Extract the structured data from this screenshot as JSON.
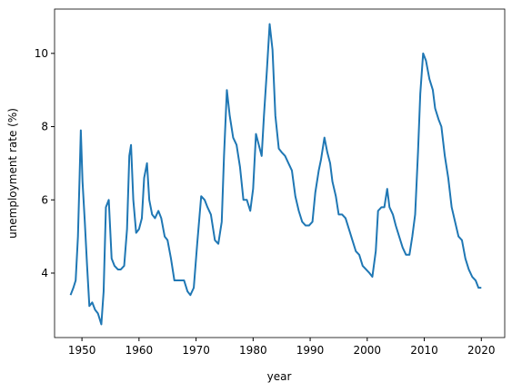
{
  "chart_data": {
    "type": "line",
    "xlabel": "year",
    "ylabel": "unemployment rate (%)",
    "x": [
      1948.0,
      1948.5,
      1948.9,
      1949.3,
      1949.6,
      1949.8,
      1950.1,
      1950.5,
      1950.9,
      1951.3,
      1951.8,
      1952.3,
      1952.8,
      1953.4,
      1953.8,
      1954.2,
      1954.7,
      1955.2,
      1955.7,
      1956.3,
      1956.8,
      1957.4,
      1957.9,
      1958.3,
      1958.6,
      1959.0,
      1959.5,
      1960.0,
      1960.5,
      1960.9,
      1961.4,
      1961.8,
      1962.3,
      1962.8,
      1963.4,
      1963.9,
      1964.5,
      1965.0,
      1965.6,
      1966.2,
      1966.8,
      1967.4,
      1967.9,
      1968.5,
      1969.0,
      1969.6,
      1970.2,
      1970.9,
      1971.5,
      1972.0,
      1972.6,
      1973.3,
      1973.9,
      1974.5,
      1974.9,
      1975.4,
      1975.9,
      1976.5,
      1977.1,
      1977.7,
      1978.3,
      1978.9,
      1979.5,
      1980.0,
      1980.5,
      1981.0,
      1981.5,
      1981.9,
      1982.4,
      1982.9,
      1983.4,
      1983.9,
      1984.5,
      1985.0,
      1985.6,
      1986.2,
      1986.8,
      1987.4,
      1988.0,
      1988.6,
      1989.2,
      1989.8,
      1990.4,
      1990.9,
      1991.5,
      1991.9,
      1992.5,
      1993.0,
      1993.5,
      1993.9,
      1994.5,
      1995.0,
      1995.6,
      1996.2,
      1996.8,
      1997.4,
      1998.0,
      1998.6,
      1999.2,
      1999.8,
      2000.4,
      2000.9,
      2001.5,
      2001.9,
      2002.5,
      2003.0,
      2003.5,
      2003.9,
      2004.5,
      2005.0,
      2005.6,
      2006.2,
      2006.8,
      2007.4,
      2007.9,
      2008.4,
      2008.9,
      2009.3,
      2009.8,
      2010.3,
      2010.9,
      2011.5,
      2011.9,
      2012.5,
      2013.0,
      2013.6,
      2014.2,
      2014.8,
      2015.4,
      2016.0,
      2016.6,
      2017.2,
      2017.8,
      2018.4,
      2019.0,
      2019.5,
      2020.0
    ],
    "series": [
      {
        "name": "unemployment rate",
        "color": "#1f77b4",
        "values": [
          3.4,
          3.6,
          3.8,
          5.0,
          6.7,
          7.9,
          6.5,
          5.4,
          4.2,
          3.1,
          3.2,
          3.0,
          2.9,
          2.6,
          3.5,
          5.8,
          6.0,
          4.4,
          4.2,
          4.1,
          4.1,
          4.2,
          5.2,
          7.2,
          7.5,
          6.0,
          5.1,
          5.2,
          5.5,
          6.6,
          7.0,
          6.0,
          5.6,
          5.5,
          5.7,
          5.5,
          5.0,
          4.9,
          4.4,
          3.8,
          3.8,
          3.8,
          3.8,
          3.5,
          3.4,
          3.6,
          4.8,
          6.1,
          6.0,
          5.8,
          5.6,
          4.9,
          4.8,
          5.4,
          7.2,
          9.0,
          8.3,
          7.7,
          7.5,
          6.9,
          6.0,
          6.0,
          5.7,
          6.3,
          7.8,
          7.5,
          7.2,
          8.3,
          9.5,
          10.8,
          10.1,
          8.3,
          7.4,
          7.3,
          7.2,
          7.0,
          6.8,
          6.1,
          5.7,
          5.4,
          5.3,
          5.3,
          5.4,
          6.2,
          6.8,
          7.1,
          7.7,
          7.3,
          7.0,
          6.5,
          6.1,
          5.6,
          5.6,
          5.5,
          5.2,
          4.9,
          4.6,
          4.5,
          4.2,
          4.1,
          4.0,
          3.9,
          4.6,
          5.7,
          5.8,
          5.8,
          6.3,
          5.8,
          5.6,
          5.3,
          5.0,
          4.7,
          4.5,
          4.5,
          5.0,
          5.6,
          7.3,
          8.9,
          10.0,
          9.8,
          9.3,
          9.0,
          8.5,
          8.2,
          8.0,
          7.2,
          6.6,
          5.8,
          5.4,
          5.0,
          4.9,
          4.4,
          4.1,
          3.9,
          3.8,
          3.6,
          3.6
        ]
      }
    ],
    "xlim": [
      1945.2,
      2024.1
    ],
    "ylim": [
      2.24,
      11.21
    ],
    "xticks": [
      1950,
      1960,
      1970,
      1980,
      1990,
      2000,
      2010,
      2020
    ],
    "yticks": [
      4,
      6,
      8,
      10
    ]
  }
}
